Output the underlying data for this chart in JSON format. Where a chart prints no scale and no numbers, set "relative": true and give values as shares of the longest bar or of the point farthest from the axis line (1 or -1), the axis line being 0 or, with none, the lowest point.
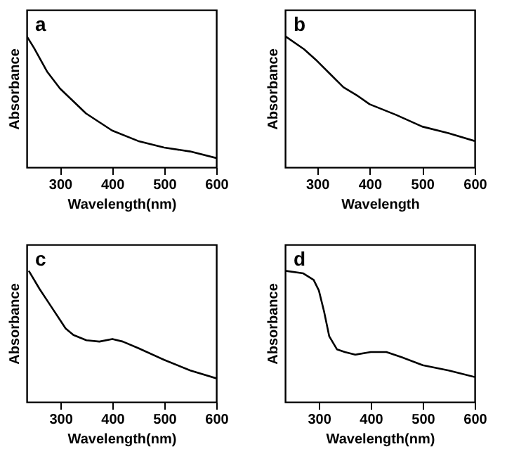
{
  "chart_data": [
    {
      "type": "line",
      "title": "a",
      "xlabel": "Wavelength(nm)",
      "ylabel": "Absorbance",
      "relative": true,
      "tick_labels": "x",
      "xlim": [
        236,
        600
      ],
      "xticks": [
        300,
        400,
        500,
        600
      ],
      "series": [
        {
          "color": "#000000",
          "x": [
            236,
            250,
            275,
            300,
            350,
            400,
            450,
            500,
            550,
            600
          ],
          "values": [
            1,
            0.91,
            0.73,
            0.6,
            0.41,
            0.28,
            0.2,
            0.15,
            0.12,
            0.07
          ]
        }
      ]
    },
    {
      "type": "line",
      "title": "b",
      "xlabel": "Wavelength",
      "ylabel": "Absorbance",
      "relative": true,
      "tick_labels": "x",
      "xlim": [
        239,
        600
      ],
      "xticks": [
        300,
        400,
        500,
        600
      ],
      "series": [
        {
          "color": "#000000",
          "x": [
            239,
            275,
            300,
            325,
            350,
            375,
            400,
            450,
            500,
            550,
            600
          ],
          "values": [
            1,
            0.9,
            0.81,
            0.71,
            0.61,
            0.55,
            0.48,
            0.4,
            0.31,
            0.26,
            0.2
          ]
        }
      ]
    },
    {
      "type": "line",
      "title": "c",
      "xlabel": "Wavelength(nm)",
      "ylabel": "Absorbance",
      "relative": true,
      "tick_labels": "x",
      "xlim": [
        235,
        600
      ],
      "xticks": [
        300,
        400,
        500,
        600
      ],
      "series": [
        {
          "color": "#000000",
          "x": [
            239,
            260,
            280,
            300,
            310,
            325,
            350,
            375,
            400,
            420,
            450,
            500,
            550,
            600
          ],
          "values": [
            1,
            0.86,
            0.74,
            0.62,
            0.56,
            0.51,
            0.47,
            0.46,
            0.48,
            0.46,
            0.41,
            0.32,
            0.24,
            0.18
          ]
        }
      ]
    },
    {
      "type": "line",
      "title": "d",
      "xlabel": "Wavelength(nm)",
      "ylabel": "Absorbance",
      "relative": true,
      "tick_labels": "x",
      "xlim": [
        235,
        600
      ],
      "xticks": [
        300,
        400,
        500,
        600
      ],
      "series": [
        {
          "color": "#000000",
          "x": [
            235,
            270,
            290,
            300,
            310,
            320,
            335,
            350,
            370,
            400,
            430,
            460,
            500,
            550,
            600
          ],
          "values": [
            1,
            0.98,
            0.93,
            0.85,
            0.69,
            0.5,
            0.4,
            0.38,
            0.36,
            0.38,
            0.38,
            0.34,
            0.28,
            0.24,
            0.19
          ]
        }
      ]
    }
  ]
}
